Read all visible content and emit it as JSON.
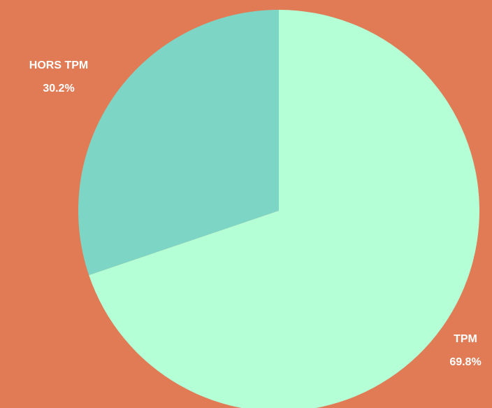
{
  "chart_data": {
    "type": "pie",
    "slices": [
      {
        "label": "TPM",
        "value": 69.8,
        "display": "69.8%",
        "color": "#B4FFD6"
      },
      {
        "label": "HORS TPM",
        "value": 30.2,
        "display": "30.2%",
        "color": "#7DD6C5"
      }
    ],
    "start_angle_deg": 0,
    "direction": "clockwise",
    "background_color": "#E07B55",
    "label_color": "#FFFFFF"
  }
}
